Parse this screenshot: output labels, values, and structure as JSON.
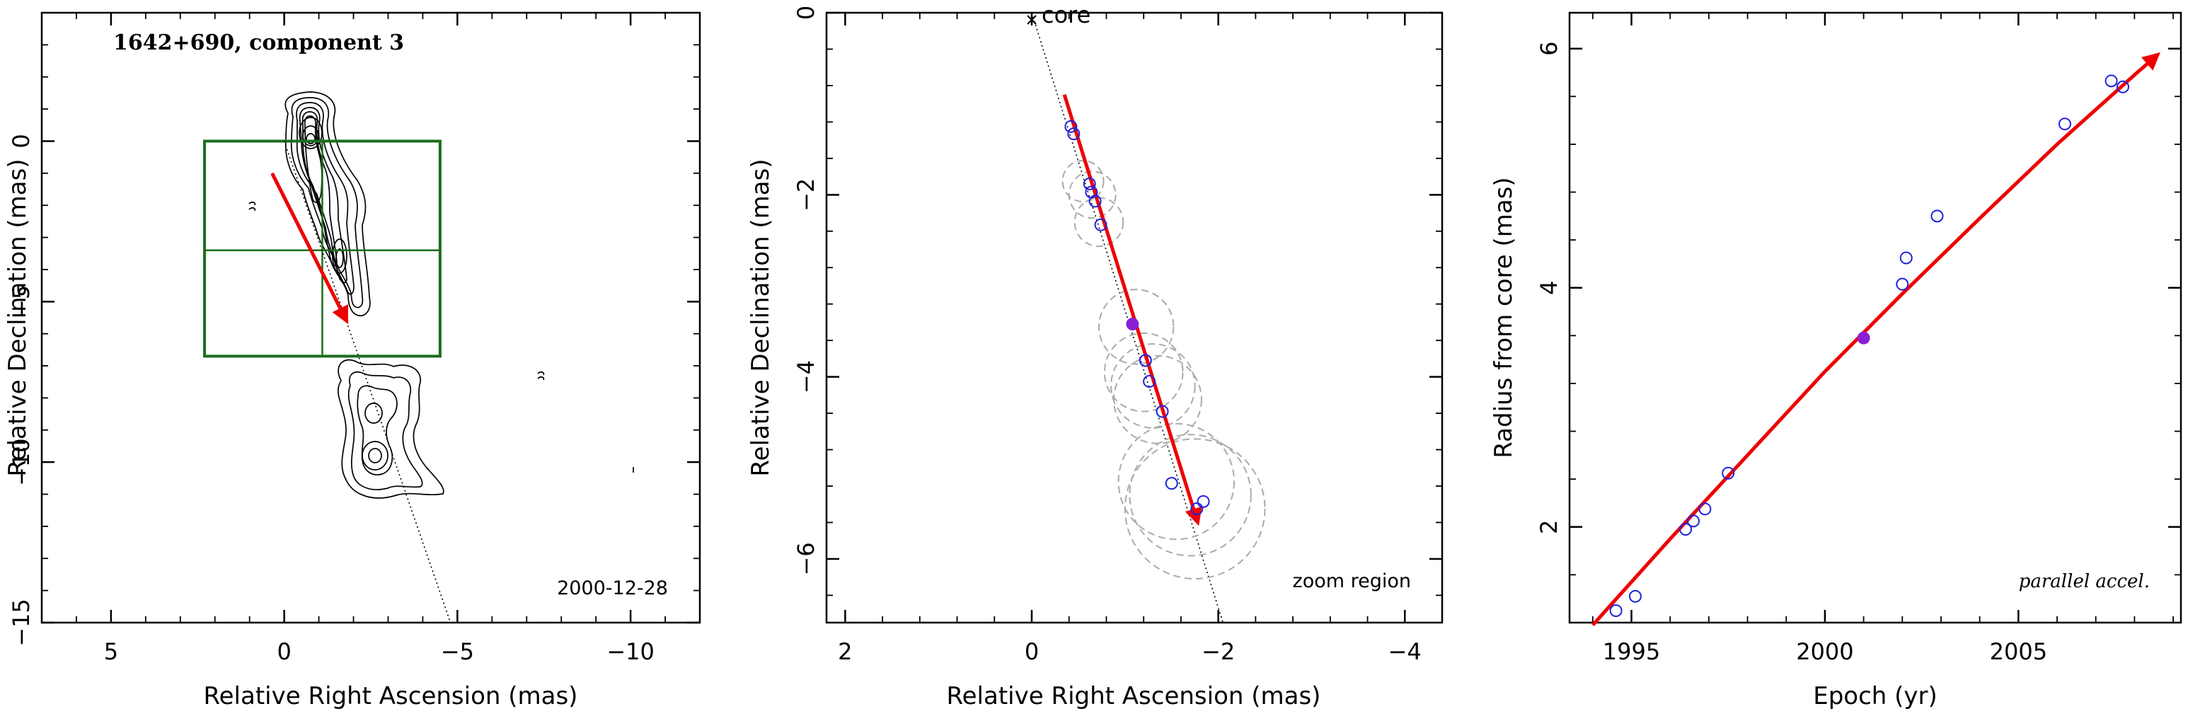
{
  "figure": {
    "colors": {
      "axis": "#000000",
      "arrow": "#ee0000",
      "open_marker": "#2222dd",
      "filled_marker": "#8a1fd6",
      "box": "#1a6e1a",
      "dashed_circle": "#aaaaaa"
    }
  },
  "chart_data": [
    {
      "type": "scatter",
      "title": "1642+690, component 3",
      "xlabel": "Relative Right Ascension (mas)",
      "ylabel": "Relative Declination (mas)",
      "xlim": [
        7,
        -12
      ],
      "ylim": [
        -15,
        4
      ],
      "xticks": [
        5,
        0,
        -5,
        -10
      ],
      "yticks": [
        0,
        -5,
        -10,
        -15
      ],
      "annotation": "2000-12-28",
      "contour_map": true,
      "zoom_box": {
        "x": [
          2.3,
          -4.5
        ],
        "y": [
          0,
          -6.7
        ],
        "x_split": -1.1,
        "y_split": -3.4
      },
      "trajectory_line": {
        "from": [
          0,
          0
        ],
        "to": [
          -4.8,
          -15
        ]
      },
      "motion_arrow": {
        "from": [
          0.35,
          -1.0
        ],
        "to": [
          -1.8,
          -5.6
        ]
      }
    },
    {
      "type": "scatter",
      "xlabel": "Relative Right Ascension (mas)",
      "ylabel": "Relative Declination (mas)",
      "xlim": [
        2.2,
        -4.4
      ],
      "ylim": [
        -6.7,
        0
      ],
      "xticks": [
        2,
        0,
        -2,
        -4
      ],
      "yticks": [
        0,
        -2,
        -4,
        -6
      ],
      "core_label": "core",
      "annotation": "zoom region",
      "open_points": [
        {
          "x": -0.42,
          "y": -1.25
        },
        {
          "x": -0.45,
          "y": -1.33
        },
        {
          "x": -0.62,
          "y": -1.88
        },
        {
          "x": -0.64,
          "y": -1.97
        },
        {
          "x": -0.68,
          "y": -2.07
        },
        {
          "x": -0.74,
          "y": -2.33
        },
        {
          "x": -1.22,
          "y": -3.82
        },
        {
          "x": -1.26,
          "y": -4.05
        },
        {
          "x": -1.4,
          "y": -4.38
        },
        {
          "x": -1.5,
          "y": -5.17
        },
        {
          "x": -1.84,
          "y": -5.37
        },
        {
          "x": -1.77,
          "y": -5.45
        }
      ],
      "filled_points": [
        {
          "x": -1.08,
          "y": -3.42
        }
      ],
      "error_circles": [
        {
          "x": -0.55,
          "y": -1.85,
          "r": 0.22
        },
        {
          "x": -0.65,
          "y": -2.0,
          "r": 0.25
        },
        {
          "x": -0.72,
          "y": -2.3,
          "r": 0.26
        },
        {
          "x": -1.12,
          "y": -3.45,
          "r": 0.4
        },
        {
          "x": -1.2,
          "y": -3.95,
          "r": 0.42
        },
        {
          "x": -1.3,
          "y": -4.1,
          "r": 0.45
        },
        {
          "x": -1.35,
          "y": -4.25,
          "r": 0.47
        },
        {
          "x": -1.55,
          "y": -5.15,
          "r": 0.62
        },
        {
          "x": -1.7,
          "y": -5.3,
          "r": 0.65
        },
        {
          "x": -1.75,
          "y": -5.45,
          "r": 0.75
        }
      ],
      "trajectory_line": {
        "from": [
          0,
          0
        ],
        "to": [
          -2.05,
          -6.7
        ]
      },
      "motion_arrow": {
        "from": [
          -0.35,
          -0.9
        ],
        "to": [
          -1.78,
          -5.6
        ]
      }
    },
    {
      "type": "scatter",
      "xlabel": "Epoch (yr)",
      "ylabel": "Radius from core (mas)",
      "xlim": [
        1993.4,
        2009.2
      ],
      "ylim": [
        1.2,
        6.3
      ],
      "xticks": [
        1995,
        2000,
        2005
      ],
      "yticks": [
        2,
        4,
        6
      ],
      "annotation": "parallel accel.",
      "open_points": [
        {
          "x": 1994.6,
          "y": 1.3
        },
        {
          "x": 1995.1,
          "y": 1.42
        },
        {
          "x": 1996.4,
          "y": 1.98
        },
        {
          "x": 1996.6,
          "y": 2.05
        },
        {
          "x": 1996.9,
          "y": 2.15
        },
        {
          "x": 1997.5,
          "y": 2.45
        },
        {
          "x": 2002.0,
          "y": 4.03
        },
        {
          "x": 2002.1,
          "y": 4.25
        },
        {
          "x": 2002.9,
          "y": 4.6
        },
        {
          "x": 2006.2,
          "y": 5.37
        },
        {
          "x": 2007.4,
          "y": 5.73
        },
        {
          "x": 2007.7,
          "y": 5.68
        }
      ],
      "filled_points": [
        {
          "x": 2001.0,
          "y": 3.58
        }
      ],
      "fit_curve": {
        "x": [
          1994.0,
          1996.0,
          1998.0,
          2000.0,
          2002.0,
          2004.0,
          2006.0,
          2008.0,
          2008.6
        ],
        "y": [
          1.18,
          1.9,
          2.6,
          3.3,
          3.95,
          4.58,
          5.2,
          5.78,
          5.95
        ]
      }
    }
  ]
}
